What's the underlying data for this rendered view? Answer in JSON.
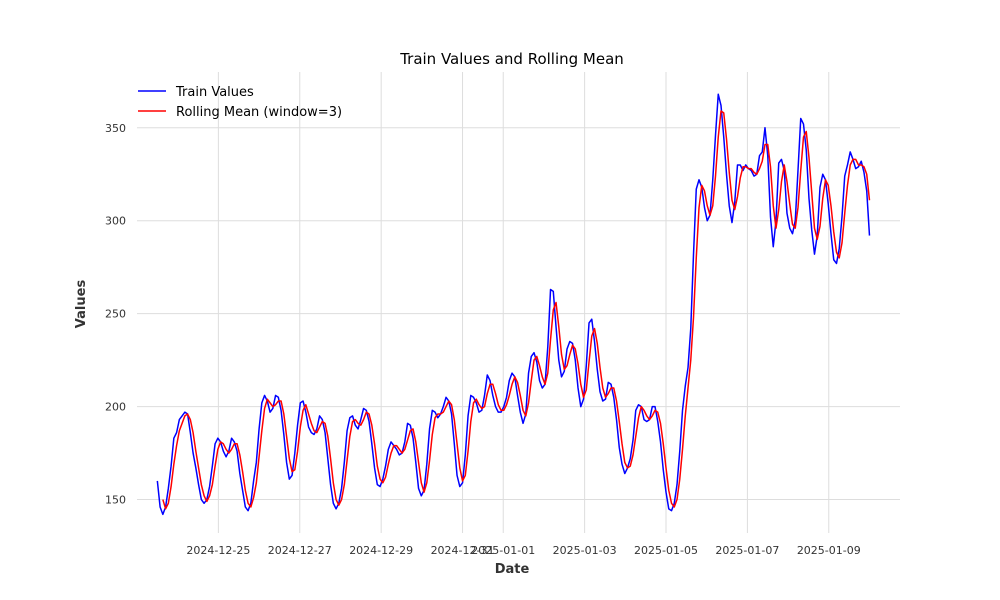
{
  "chart_data": {
    "type": "line",
    "title": "Train Values and Rolling Mean",
    "xlabel": "Date",
    "ylabel": "Values",
    "x_start": "2024-12-23 12:00",
    "x_end": "2025-01-10 00:00",
    "xlim": [
      "2024-12-23 00:00",
      "2025-01-10 18:00"
    ],
    "ylim": [
      132,
      380
    ],
    "x_ticks": [
      {
        "date": "2024-12-25",
        "label": "2024-12-25"
      },
      {
        "date": "2024-12-27",
        "label": "2024-12-27"
      },
      {
        "date": "2024-12-29",
        "label": "2024-12-29"
      },
      {
        "date": "2024-12-31",
        "label": "2024-12-31"
      },
      {
        "date": "2025-01-01",
        "label": "2025-01-01"
      },
      {
        "date": "2025-01-03",
        "label": "2025-01-03"
      },
      {
        "date": "2025-01-05",
        "label": "2025-01-05"
      },
      {
        "date": "2025-01-07",
        "label": "2025-01-07"
      },
      {
        "date": "2025-01-09",
        "label": "2025-01-09"
      }
    ],
    "y_ticks": [
      150,
      200,
      250,
      300,
      350
    ],
    "grid": true,
    "legend": "top-left",
    "series": [
      {
        "name": "Train Values",
        "color": "#0000ff",
        "values": [
          160,
          146,
          142,
          146,
          156,
          168,
          183,
          186,
          193,
          195,
          197,
          196,
          186,
          175,
          167,
          158,
          150,
          148,
          150,
          157,
          168,
          180,
          183,
          181,
          176,
          173,
          176,
          183,
          181,
          176,
          164,
          155,
          146,
          144,
          148,
          160,
          170,
          188,
          202,
          206,
          203,
          197,
          199,
          206,
          205,
          198,
          185,
          170,
          161,
          163,
          175,
          190,
          202,
          203,
          197,
          189,
          186,
          185,
          188,
          195,
          193,
          186,
          172,
          158,
          148,
          145,
          148,
          156,
          170,
          187,
          194,
          195,
          190,
          188,
          193,
          199,
          198,
          192,
          180,
          167,
          158,
          157,
          161,
          168,
          177,
          181,
          179,
          177,
          174,
          175,
          181,
          191,
          190,
          183,
          170,
          156,
          152,
          155,
          169,
          188,
          198,
          197,
          194,
          196,
          200,
          205,
          203,
          196,
          180,
          163,
          157,
          159,
          174,
          195,
          206,
          205,
          202,
          197,
          198,
          206,
          217,
          214,
          206,
          200,
          197,
          197,
          200,
          205,
          214,
          218,
          216,
          206,
          197,
          191,
          196,
          218,
          227,
          229,
          224,
          214,
          210,
          212,
          232,
          263,
          262,
          243,
          225,
          216,
          219,
          231,
          235,
          234,
          225,
          210,
          200,
          204,
          222,
          245,
          247,
          235,
          220,
          208,
          203,
          204,
          213,
          212,
          205,
          193,
          178,
          169,
          164,
          167,
          172,
          182,
          198,
          201,
          200,
          193,
          192,
          193,
          200,
          200,
          192,
          181,
          166,
          154,
          145,
          144,
          148,
          158,
          176,
          198,
          211,
          221,
          242,
          282,
          317,
          322,
          318,
          307,
          300,
          303,
          322,
          346,
          368,
          362,
          345,
          325,
          308,
          299,
          310,
          330,
          330,
          327,
          330,
          328,
          327,
          324,
          325,
          335,
          337,
          350,
          335,
          302,
          286,
          300,
          331,
          333,
          327,
          304,
          296,
          293,
          300,
          327,
          355,
          352,
          338,
          312,
          295,
          282,
          292,
          318,
          325,
          322,
          309,
          293,
          279,
          277,
          285,
          302,
          324,
          330,
          337,
          333,
          328,
          329,
          332,
          326,
          316,
          292
        ]
      },
      {
        "name": "Rolling Mean (window=3)",
        "color": "#ff0000",
        "values": [
          null,
          null,
          150,
          145,
          148,
          157,
          169,
          179,
          187,
          191,
          195,
          196,
          193,
          186,
          176,
          167,
          158,
          152,
          149,
          152,
          158,
          168,
          177,
          181,
          180,
          177,
          175,
          177,
          180,
          180,
          174,
          165,
          155,
          148,
          146,
          151,
          159,
          173,
          187,
          199,
          204,
          202,
          200,
          201,
          203,
          203,
          196,
          184,
          172,
          165,
          166,
          176,
          189,
          198,
          201,
          196,
          191,
          187,
          186,
          189,
          192,
          191,
          184,
          172,
          159,
          150,
          147,
          150,
          158,
          171,
          184,
          192,
          193,
          191,
          190,
          193,
          197,
          196,
          190,
          180,
          168,
          161,
          159,
          162,
          169,
          175,
          179,
          179,
          177,
          175,
          177,
          182,
          187,
          188,
          181,
          170,
          159,
          154,
          159,
          171,
          185,
          194,
          196,
          196,
          197,
          200,
          203,
          201,
          193,
          180,
          167,
          160,
          163,
          176,
          192,
          202,
          204,
          201,
          199,
          200,
          207,
          212,
          212,
          207,
          201,
          198,
          198,
          201,
          206,
          212,
          216,
          213,
          206,
          198,
          195,
          202,
          214,
          225,
          227,
          222,
          216,
          212,
          218,
          236,
          252,
          256,
          243,
          228,
          220,
          222,
          228,
          233,
          231,
          223,
          212,
          205,
          209,
          224,
          238,
          242,
          234,
          221,
          210,
          205,
          207,
          210,
          210,
          203,
          192,
          180,
          170,
          167,
          168,
          174,
          184,
          194,
          200,
          198,
          195,
          193,
          195,
          198,
          197,
          191,
          180,
          167,
          155,
          148,
          146,
          150,
          161,
          177,
          195,
          210,
          225,
          248,
          280,
          307,
          319,
          316,
          308,
          303,
          308,
          324,
          345,
          359,
          358,
          344,
          326,
          311,
          306,
          313,
          323,
          329,
          329,
          328,
          328,
          326,
          325,
          328,
          332,
          341,
          341,
          329,
          308,
          296,
          306,
          321,
          330,
          321,
          309,
          298,
          296,
          307,
          327,
          345,
          348,
          334,
          315,
          296,
          290,
          297,
          312,
          322,
          319,
          308,
          294,
          283,
          280,
          288,
          304,
          319,
          330,
          333,
          333,
          330,
          330,
          329,
          325,
          311
        ]
      }
    ]
  }
}
